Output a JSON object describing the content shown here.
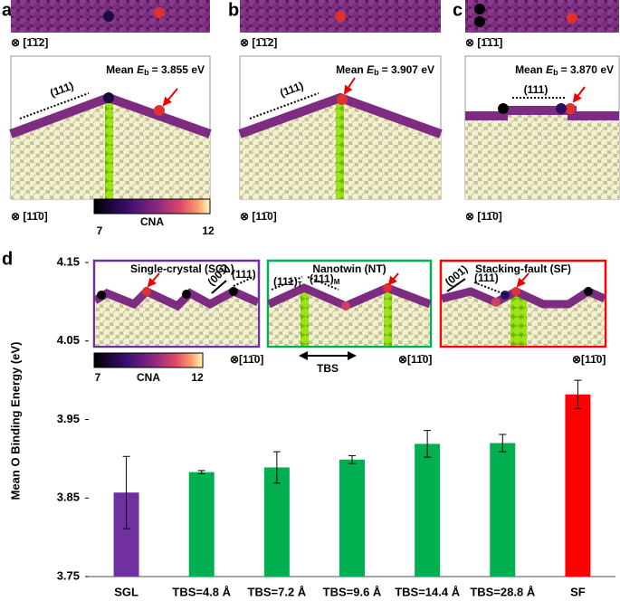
{
  "panels": [
    {
      "label": "a",
      "top_direction": "⊗ [1̄1̄2]",
      "mean": "Mean",
      "symbol": "E",
      "subscript": "b",
      "mean_value": "= 3.855 eV",
      "plane": "(111)",
      "side_direction": "⊗ [11̄0]"
    },
    {
      "label": "b",
      "top_direction": "⊗ [1̄1̄2]",
      "mean": "Mean",
      "symbol": "E",
      "subscript": "b",
      "mean_value": "= 3.907 eV",
      "plane": "(111)",
      "side_direction": "⊗ [11̄0]"
    },
    {
      "label": "c",
      "top_direction": "⊗ [1̄1̄1̄]",
      "mean": "Mean",
      "symbol": "E",
      "subscript": "b",
      "mean_value": "= 3.870 eV",
      "plane": "(111)",
      "side_direction": "⊗ [11̄0]"
    }
  ],
  "colorbar": {
    "title": "CNA",
    "min": 7,
    "max": 12
  },
  "panel_d": {
    "label": "d",
    "insets": [
      {
        "title": "Single-crystal (SGL)",
        "color": "#7030a0",
        "plane_a": "(001)",
        "plane_b": "(111)",
        "direction": "⊗[11̄0]"
      },
      {
        "title": "Nanotwin (NT)",
        "color": "#00b050",
        "plane_a": "(111)",
        "sub_a": "T",
        "plane_b": "(111)",
        "sub_b": "M",
        "direction": "⊗[11̄0]",
        "spacing": "TBS"
      },
      {
        "title": "Stacking-fault (SF)",
        "color": "#ff0000",
        "plane_a": "(001)",
        "plane_b": "(111)",
        "direction": "⊗[11̄0]"
      }
    ],
    "colorbar": {
      "title": "CNA",
      "min": 7,
      "max": 12
    }
  },
  "chart_data": {
    "type": "bar",
    "y_label": "Mean O Binding Energy (eV)",
    "categories": [
      "SGL",
      "TBS=4.8 Å",
      "TBS=7.2 Å",
      "TBS=9.6 Å",
      "TBS=14.4 Å",
      "TBS=28.8 Å",
      "SF"
    ],
    "values": [
      3.857,
      3.883,
      3.889,
      3.899,
      3.919,
      3.92,
      3.982
    ],
    "errors": [
      0.046,
      0.002,
      0.02,
      0.005,
      0.017,
      0.011,
      0.018
    ],
    "colors": [
      "#7030a0",
      "#00b050",
      "#00b050",
      "#00b050",
      "#00b050",
      "#00b050",
      "#ff0000"
    ],
    "ylim": [
      3.75,
      4.15
    ],
    "yticks": [
      3.75,
      3.85,
      3.95,
      4.05,
      4.15
    ],
    "grid": false
  }
}
